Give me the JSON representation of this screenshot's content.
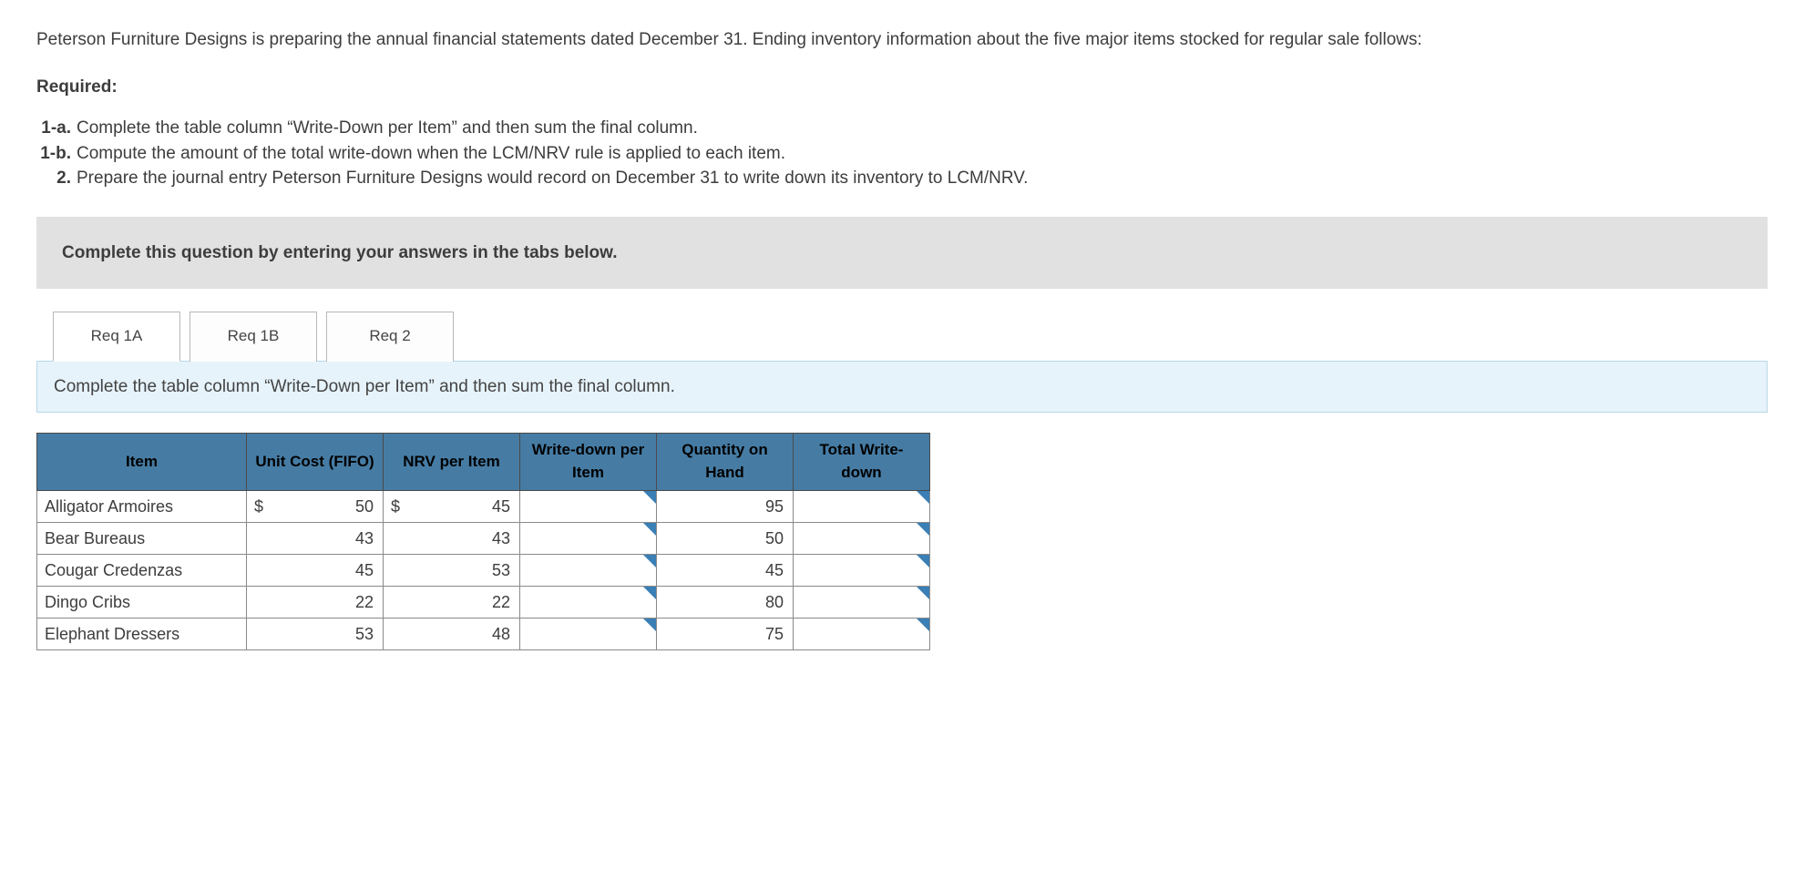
{
  "intro": "Peterson Furniture Designs is preparing the annual financial statements dated December 31. Ending inventory information about the five major items stocked for regular sale follows:",
  "required_label": "Required:",
  "requirements": [
    {
      "num": "1-a.",
      "text": "Complete the table column “Write-Down per Item” and then sum the final column."
    },
    {
      "num": "1-b.",
      "text": "Compute the amount of the total write-down when the LCM/NRV rule is applied to each item."
    },
    {
      "num": "2.",
      "text": "Prepare the journal entry Peterson Furniture Designs would record on December 31 to write down its inventory to LCM/NRV."
    }
  ],
  "banner": "Complete this question by entering your answers in the tabs below.",
  "tabs": [
    {
      "label": "Req 1A",
      "active": true
    },
    {
      "label": "Req 1B",
      "active": false
    },
    {
      "label": "Req 2",
      "active": false
    }
  ],
  "tab_instruction": "Complete the table column “Write-Down per Item” and then sum the final column.",
  "table": {
    "headers": {
      "item": "Item",
      "unit_cost": "Unit Cost (FIFO)",
      "nrv": "NRV per Item",
      "wd_item": "Write-down per Item",
      "qty": "Quantity on Hand",
      "total": "Total Write-down"
    },
    "currency_symbol": "$",
    "rows": [
      {
        "item": "Alligator Armoires",
        "unit_cost": "50",
        "nrv": "45",
        "wd": "",
        "qty": "95",
        "total": "",
        "show_currency": true
      },
      {
        "item": "Bear Bureaus",
        "unit_cost": "43",
        "nrv": "43",
        "wd": "",
        "qty": "50",
        "total": "",
        "show_currency": false
      },
      {
        "item": "Cougar Credenzas",
        "unit_cost": "45",
        "nrv": "53",
        "wd": "",
        "qty": "45",
        "total": "",
        "show_currency": false
      },
      {
        "item": "Dingo Cribs",
        "unit_cost": "22",
        "nrv": "22",
        "wd": "",
        "qty": "80",
        "total": "",
        "show_currency": false
      },
      {
        "item": "Elephant Dressers",
        "unit_cost": "53",
        "nrv": "48",
        "wd": "",
        "qty": "75",
        "total": "",
        "show_currency": false
      }
    ]
  },
  "colors": {
    "header_bg": "#467ca4",
    "banner_bg": "#e1e1e1",
    "tab_instruction_bg": "#e6f3fa",
    "input_marker": "#3a7fb5"
  }
}
